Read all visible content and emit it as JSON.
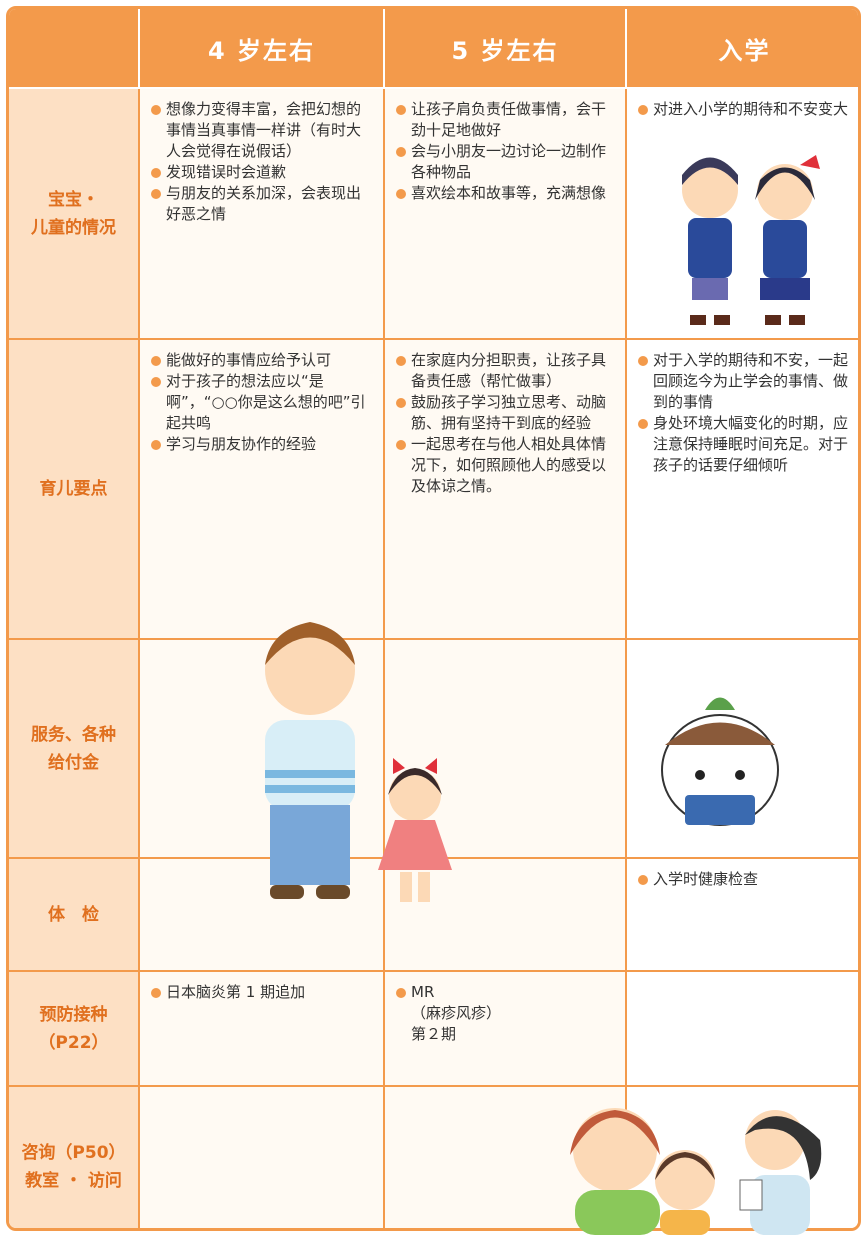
{
  "table": {
    "header": [
      "4 岁左右",
      "5 岁左右",
      "入学"
    ],
    "rows": [
      {
        "label": [
          "宝宝・",
          "儿童的情况"
        ],
        "cells": [
          [
            "想像力变得丰富，会把幻想的事情当真事情一样讲（有时大人会觉得在说假话）",
            "发现错误时会道歉",
            "与朋友的关系加深，会表现出好恶之情"
          ],
          [
            "让孩子肩负责任做事情，会干劲十足地做好",
            "会与小朋友一边讨论一边制作各种物品",
            "喜欢绘本和故事等，充满想像"
          ],
          [
            "对进入小学的期待和不安变大"
          ]
        ]
      },
      {
        "label": [
          "育儿要点"
        ],
        "cells": [
          [
            "能做好的事情应给予认可",
            "对于孩子的想法应以“是啊”，“○○你是这么想的吧”引起共鸣",
            "学习与朋友协作的经验"
          ],
          [
            "在家庭内分担职责，让孩子具备责任感（帮忙做事）",
            "鼓励孩子学习独立思考、动脑筋、拥有坚持干到底的经验",
            "一起思考在与他人相处具体情况下，如何照顾他人的感受以及体谅之情。"
          ],
          [
            "对于入学的期待和不安，一起回顾迄今为止学会的事情、做到的事情",
            "身处环境大幅变化的时期，应注意保持睡眠时间充足。对于孩子的话要仔细倾听"
          ]
        ]
      },
      {
        "label": [
          "服务、各种",
          "给付金"
        ],
        "cells": [
          [],
          [],
          []
        ]
      },
      {
        "label": [
          "体　检"
        ],
        "cells": [
          [],
          [],
          [
            "入学时健康检查"
          ]
        ]
      },
      {
        "label": [
          "预防接种",
          "（P22）"
        ],
        "cells": [
          [
            "日本脑炎第 1 期追加"
          ],
          [
            "MR\n（麻疹风疹）\n第２期"
          ],
          []
        ]
      },
      {
        "label": [
          "咨询（P50）",
          "教室 ・ 访问"
        ],
        "cells": [
          [],
          [],
          []
        ]
      }
    ]
  }
}
